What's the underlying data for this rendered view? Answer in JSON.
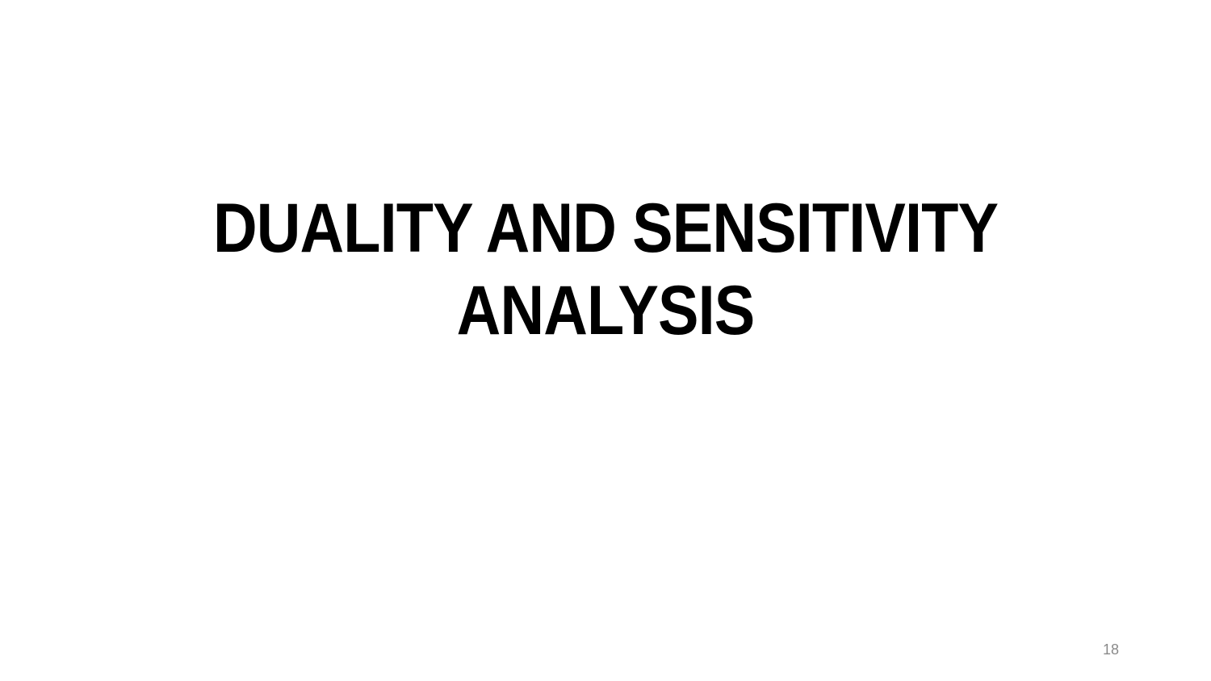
{
  "slide": {
    "title_line_1": "DUALITY AND SENSITIVITY",
    "title_line_2": "ANALYSIS",
    "page_number": "18"
  }
}
